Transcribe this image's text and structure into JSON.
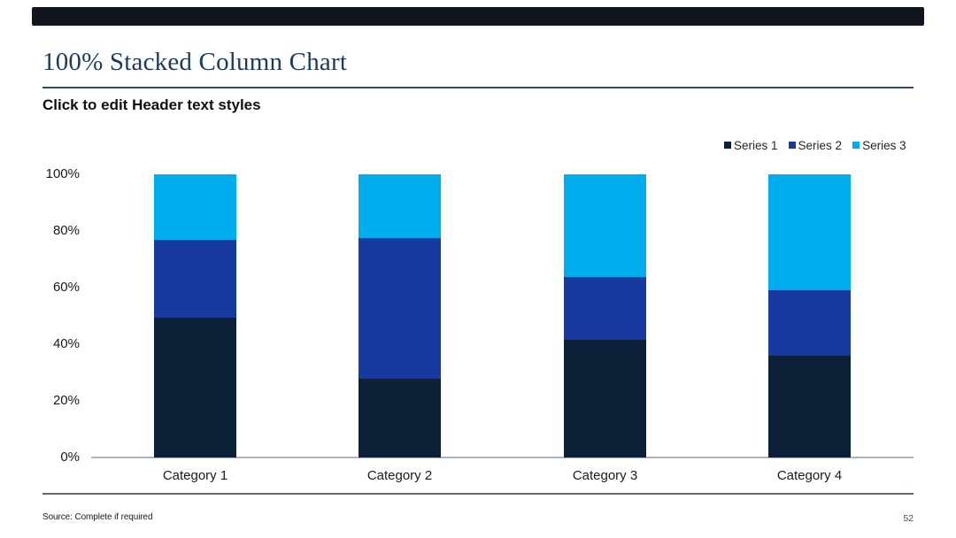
{
  "page": {
    "title": "100% Stacked Column Chart",
    "subtitle": "Click to edit Header text styles",
    "footer_source": "Source: Complete if required",
    "page_number": "52"
  },
  "colors": {
    "top_bar": "#10151E",
    "title_text": "#1C3A5E",
    "title_rule": "#2C4B6E",
    "series1": "#0C2038",
    "series2": "#1839A0",
    "series3": "#00AEEF",
    "axis_line": "#A9B4BE",
    "footer_rule": "#5E6E7C"
  },
  "chart_data": {
    "type": "bar",
    "stacked": true,
    "normalized_100_percent": true,
    "title": "",
    "xlabel": "",
    "ylabel": "",
    "ylim": [
      0,
      100
    ],
    "y_unit": "%",
    "grid": false,
    "legend_position": "top-right",
    "categories": [
      "Category 1",
      "Category 2",
      "Category 3",
      "Category 4"
    ],
    "y_ticks": [
      "100%",
      "80%",
      "60%",
      "40%",
      "20%",
      "0%"
    ],
    "series": [
      {
        "name": "Series 1",
        "color_key": "series1",
        "values": [
          49.4,
          27.8,
          41.6,
          35.9
        ]
      },
      {
        "name": "Series 2",
        "color_key": "series2",
        "values": [
          27.5,
          49.7,
          22.2,
          23.1
        ]
      },
      {
        "name": "Series 3",
        "color_key": "series3",
        "values": [
          23.1,
          22.5,
          36.2,
          41.0
        ]
      }
    ]
  }
}
